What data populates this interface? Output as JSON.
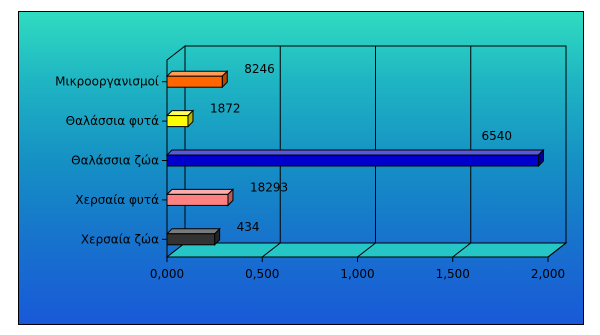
{
  "chart_data": {
    "type": "bar",
    "orientation": "horizontal",
    "style": "3d",
    "categories": [
      "Μικροοργανισμοί",
      "Θαλάσσια φυτά",
      "Θαλάσσια ζώα",
      "Χερσαία φυτά",
      "Χερσαία ζώα"
    ],
    "values": [
      0.29,
      0.11,
      1.95,
      0.32,
      0.25
    ],
    "data_labels": [
      "8246",
      "1872",
      "6540",
      "18293",
      "434"
    ],
    "xlim": [
      0,
      2.0
    ],
    "x_ticks": [
      "0,000",
      "0,500",
      "1,000",
      "1,500",
      "2,000"
    ],
    "grid": "vertical",
    "legend": "none",
    "colors": [
      "#ff6600",
      "#ffff00",
      "#0000cc",
      "#ff8080",
      "#333333"
    ]
  }
}
